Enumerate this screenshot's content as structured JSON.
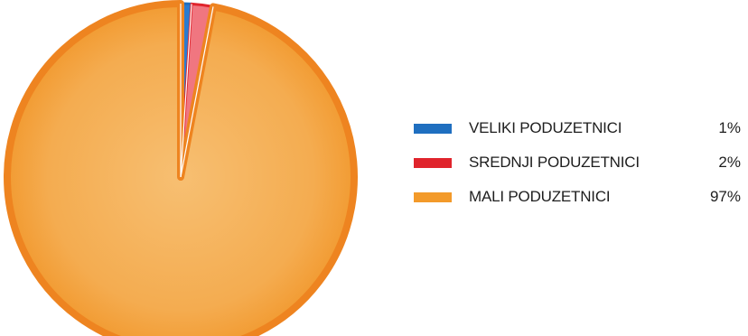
{
  "chart_data": {
    "type": "pie",
    "title": "",
    "categories": [
      "VELIKI PODUZETNICI",
      "SREDNJI PODUZETNICI",
      "MALI PODUZETNICI"
    ],
    "values": [
      1,
      2,
      97
    ],
    "value_labels": [
      "1%",
      "2%",
      "97%"
    ],
    "unit": "%",
    "legend_position": "right",
    "colors": [
      "#1f6fc0",
      "#e0242c",
      "#f39a2a"
    ],
    "slice_fill_colors": [
      "#2a7bd0",
      "#f07680",
      "#f4ad52"
    ],
    "edge_colors": [
      "#1f6fc0",
      "#e0242c",
      "#ee8420"
    ]
  }
}
